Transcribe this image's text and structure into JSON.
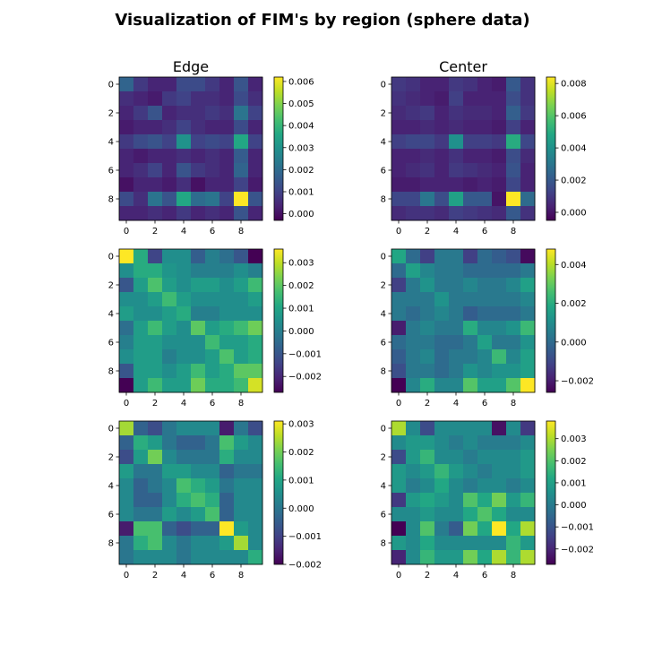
{
  "figure": {
    "suptitle": "Visualization of FIM's by region (sphere data)",
    "col_titles": [
      "Edge",
      "Center"
    ],
    "colormap": "viridis"
  },
  "chart_data": [
    {
      "type": "heatmap",
      "row": 0,
      "col": 0,
      "vmin": -0.0003,
      "vmax": 0.0062,
      "ticks": [
        0.0,
        0.001,
        0.002,
        0.003,
        0.004,
        0.005,
        0.006
      ],
      "tick_labels": [
        "0.000",
        "0.001",
        "0.002",
        "0.003",
        "0.004",
        "0.005",
        "0.006"
      ],
      "axis_ticks": [
        0,
        2,
        4,
        6,
        8
      ],
      "values": [
        [
          0.0018,
          0.0008,
          0.0004,
          0.0004,
          0.0012,
          0.0012,
          0.0008,
          0.0004,
          0.0014,
          0.0004
        ],
        [
          0.0006,
          0.0004,
          0.0002,
          0.0008,
          0.001,
          0.0006,
          0.0006,
          0.0004,
          0.0012,
          0.0006
        ],
        [
          0.0004,
          0.0008,
          0.0014,
          0.0004,
          0.0006,
          0.0006,
          0.0008,
          0.0006,
          0.0022,
          0.001
        ],
        [
          0.0002,
          0.0004,
          0.0004,
          0.0006,
          0.001,
          0.0006,
          0.0004,
          0.0004,
          0.0012,
          0.0004
        ],
        [
          0.0008,
          0.0012,
          0.0014,
          0.001,
          0.003,
          0.001,
          0.0012,
          0.001,
          0.0036,
          0.001
        ],
        [
          0.0004,
          0.0002,
          0.0004,
          0.0004,
          0.0006,
          0.0004,
          0.0006,
          0.0004,
          0.0016,
          0.0004
        ],
        [
          0.0004,
          0.0006,
          0.001,
          0.0004,
          0.0014,
          0.0008,
          0.0006,
          0.0004,
          0.0018,
          0.0004
        ],
        [
          0.0,
          0.0004,
          0.0004,
          0.0002,
          0.0006,
          0.0,
          0.0004,
          0.0004,
          0.001,
          0.0002
        ],
        [
          0.0012,
          0.0006,
          0.0022,
          0.0014,
          0.0036,
          0.002,
          0.0022,
          0.001,
          0.0062,
          0.0014
        ],
        [
          0.0004,
          0.0004,
          0.0006,
          0.0004,
          0.0008,
          0.0004,
          0.0006,
          0.0004,
          0.0014,
          0.0004
        ]
      ]
    },
    {
      "type": "heatmap",
      "row": 0,
      "col": 1,
      "vmin": -0.0005,
      "vmax": 0.0084,
      "ticks": [
        0.0,
        0.002,
        0.004,
        0.006,
        0.008
      ],
      "tick_labels": [
        "0.000",
        "0.002",
        "0.004",
        "0.006",
        "0.008"
      ],
      "axis_ticks": [
        0,
        2,
        4,
        6,
        8
      ],
      "values": [
        [
          0.001,
          0.0008,
          0.0004,
          0.0004,
          0.001,
          0.0008,
          0.0004,
          0.0002,
          0.002,
          0.0008
        ],
        [
          0.0008,
          0.0006,
          0.0004,
          0.0002,
          0.0012,
          0.0004,
          0.0004,
          0.0004,
          0.0016,
          0.0008
        ],
        [
          0.0006,
          0.0008,
          0.001,
          0.0004,
          0.0008,
          0.0006,
          0.0006,
          0.0004,
          0.0022,
          0.001
        ],
        [
          0.0004,
          0.0004,
          0.0006,
          0.0004,
          0.0006,
          0.0004,
          0.0004,
          0.0002,
          0.0012,
          0.0004
        ],
        [
          0.0012,
          0.0014,
          0.0014,
          0.001,
          0.004,
          0.0012,
          0.0012,
          0.001,
          0.005,
          0.0014
        ],
        [
          0.0004,
          0.0004,
          0.0006,
          0.0004,
          0.0008,
          0.0004,
          0.0004,
          0.0002,
          0.0016,
          0.0006
        ],
        [
          0.0004,
          0.0006,
          0.0008,
          0.0004,
          0.001,
          0.0008,
          0.0006,
          0.0004,
          0.0018,
          0.0004
        ],
        [
          0.0002,
          0.0002,
          0.0004,
          0.0004,
          0.0004,
          0.0002,
          0.0004,
          0.0002,
          0.0014,
          0.0004
        ],
        [
          0.0014,
          0.0014,
          0.003,
          0.0016,
          0.0046,
          0.002,
          0.002,
          0.0,
          0.0084,
          0.0026
        ],
        [
          0.0006,
          0.0008,
          0.0008,
          0.0006,
          0.0012,
          0.001,
          0.0008,
          0.0006,
          0.002,
          0.0008
        ]
      ]
    },
    {
      "type": "heatmap",
      "row": 1,
      "col": 0,
      "vmin": -0.0027,
      "vmax": 0.0036,
      "ticks": [
        -0.002,
        -0.001,
        0.0,
        0.001,
        0.002,
        0.003
      ],
      "tick_labels": [
        "−0.002",
        "−0.001",
        "0.000",
        "0.001",
        "0.002",
        "0.003"
      ],
      "axis_ticks": [
        0,
        2,
        4,
        6,
        8
      ],
      "values": [
        [
          0.0036,
          0.0012,
          -0.0014,
          0.0004,
          0.0004,
          -0.0008,
          0.0,
          -0.0004,
          -0.001,
          -0.0027
        ],
        [
          0.0004,
          0.0012,
          0.0012,
          0.0006,
          0.0004,
          0.0,
          0.0,
          0.0,
          0.0004,
          0.0
        ],
        [
          -0.001,
          0.0008,
          0.0018,
          0.0008,
          0.0004,
          0.0008,
          0.0008,
          0.0004,
          0.0008,
          0.0016
        ],
        [
          0.0004,
          0.0004,
          0.0008,
          0.0016,
          0.0008,
          0.0004,
          0.0004,
          0.0004,
          0.0004,
          0.0008
        ],
        [
          0.0008,
          0.0004,
          0.0004,
          0.0008,
          0.0012,
          0.0,
          0.0,
          0.0004,
          0.0004,
          0.0004
        ],
        [
          -0.0004,
          0.0008,
          0.0016,
          0.0008,
          0.0004,
          0.002,
          0.0008,
          0.0012,
          0.0016,
          0.0022
        ],
        [
          0.0,
          0.0008,
          0.0008,
          0.0004,
          0.0004,
          0.0004,
          0.0016,
          0.0008,
          0.0008,
          0.0012
        ],
        [
          0.0004,
          0.0008,
          0.0008,
          0.0,
          0.0004,
          0.0004,
          0.0008,
          0.0018,
          0.0008,
          0.0012
        ],
        [
          -0.001,
          0.0008,
          0.0008,
          0.0004,
          0.0008,
          0.0016,
          0.0008,
          0.0012,
          0.002,
          0.002
        ],
        [
          -0.0027,
          0.0008,
          0.0016,
          0.0008,
          0.0008,
          0.0022,
          0.0012,
          0.0012,
          0.0016,
          0.0032
        ]
      ]
    },
    {
      "type": "heatmap",
      "row": 1,
      "col": 1,
      "vmin": -0.0026,
      "vmax": 0.0048,
      "ticks": [
        -0.002,
        0.0,
        0.002,
        0.004
      ],
      "tick_labels": [
        "−0.002",
        "0.000",
        "0.002",
        "0.004"
      ],
      "axis_ticks": [
        0,
        2,
        4,
        6,
        8
      ],
      "values": [
        [
          0.0018,
          0.0,
          -0.0012,
          0.0004,
          0.0004,
          -0.0012,
          0.0,
          -0.0004,
          -0.0008,
          -0.0024
        ],
        [
          0.0,
          0.0016,
          0.0008,
          0.0004,
          0.0004,
          0.0,
          0.0,
          0.0,
          0.0,
          0.0004
        ],
        [
          -0.0012,
          0.0004,
          0.0012,
          0.0004,
          0.0004,
          0.0008,
          0.0004,
          0.0004,
          0.0008,
          0.0016
        ],
        [
          0.0004,
          0.0004,
          0.0004,
          0.0012,
          0.0004,
          0.0004,
          0.0004,
          0.0004,
          0.0004,
          0.0008
        ],
        [
          0.0004,
          0.0,
          0.0004,
          0.0008,
          0.0004,
          -0.0004,
          0.0,
          0.0,
          0.0,
          0.0004
        ],
        [
          -0.002,
          0.0004,
          0.0008,
          0.0004,
          0.0004,
          0.002,
          0.0008,
          0.0008,
          0.0012,
          0.0024
        ],
        [
          0.0,
          0.0004,
          0.0004,
          0.0,
          0.0,
          0.0004,
          0.0016,
          0.0004,
          0.0004,
          0.0012
        ],
        [
          -0.0004,
          0.0004,
          0.0008,
          0.0,
          0.0004,
          0.0004,
          0.0008,
          0.0024,
          0.0008,
          0.0016
        ],
        [
          -0.0008,
          0.0004,
          0.0004,
          0.0,
          0.0004,
          0.0012,
          0.0008,
          0.0012,
          0.0012,
          0.0016
        ],
        [
          -0.0026,
          0.0008,
          0.002,
          0.0008,
          0.0008,
          0.0028,
          0.0016,
          0.0016,
          0.0028,
          0.0048
        ]
      ]
    },
    {
      "type": "heatmap",
      "row": 2,
      "col": 0,
      "vmin": -0.002,
      "vmax": 0.0031,
      "ticks": [
        -0.002,
        -0.001,
        0.0,
        0.001,
        0.002,
        0.003
      ],
      "tick_labels": [
        "−0.002",
        "−0.001",
        "0.000",
        "0.001",
        "0.002",
        "0.003"
      ],
      "axis_ticks": [
        0,
        2,
        4,
        6,
        8
      ],
      "values": [
        [
          0.0024,
          -0.0004,
          -0.0008,
          0.0,
          0.0004,
          0.0004,
          0.0004,
          -0.0016,
          0.0,
          -0.0008
        ],
        [
          -0.0004,
          0.0012,
          0.0008,
          0.0,
          -0.0004,
          -0.0004,
          0.0,
          0.0016,
          0.0008,
          0.0004
        ],
        [
          -0.0008,
          0.0008,
          0.002,
          0.0004,
          0.0,
          0.0,
          0.0,
          0.0012,
          0.0004,
          0.0004
        ],
        [
          0.0008,
          0.0,
          0.0,
          0.0008,
          0.0008,
          0.0004,
          0.0004,
          -0.0004,
          0.0,
          0.0
        ],
        [
          0.0004,
          -0.0004,
          0.0,
          0.0004,
          0.0016,
          0.0012,
          0.0008,
          0.0,
          0.0004,
          0.0004
        ],
        [
          0.0004,
          -0.0004,
          -0.0004,
          0.0004,
          0.0012,
          0.0016,
          0.0012,
          -0.0004,
          0.0004,
          0.0004
        ],
        [
          0.0004,
          0.0,
          0.0,
          0.0008,
          0.0004,
          0.0008,
          0.0016,
          -0.0004,
          0.0004,
          0.0004
        ],
        [
          -0.0016,
          0.0016,
          0.0016,
          -0.0004,
          -0.0008,
          -0.0004,
          -0.0004,
          0.0031,
          0.0008,
          0.0004
        ],
        [
          0.0,
          0.0012,
          0.0016,
          0.0004,
          0.0,
          0.0004,
          0.0004,
          0.0008,
          0.0024,
          0.0004
        ],
        [
          0.0,
          0.0004,
          0.0004,
          0.0004,
          0.0,
          0.0004,
          0.0004,
          0.0004,
          0.0004,
          0.0012
        ]
      ]
    },
    {
      "type": "heatmap",
      "row": 2,
      "col": 1,
      "vmin": -0.0027,
      "vmax": 0.0038,
      "ticks": [
        -0.002,
        -0.001,
        0.0,
        0.001,
        0.002,
        0.003
      ],
      "tick_labels": [
        "−0.002",
        "−0.001",
        "0.000",
        "0.001",
        "0.002",
        "0.003"
      ],
      "axis_ticks": [
        0,
        2,
        4,
        6,
        8
      ],
      "values": [
        [
          0.003,
          0.0004,
          -0.0012,
          0.0004,
          0.0004,
          0.0004,
          0.0004,
          -0.0024,
          0.0004,
          -0.0016
        ],
        [
          0.0004,
          0.0008,
          0.0008,
          0.0004,
          0.0,
          0.0004,
          0.0,
          0.0,
          0.0,
          0.0004
        ],
        [
          -0.0012,
          0.0008,
          0.0016,
          0.0004,
          0.0004,
          0.0,
          0.0004,
          0.0004,
          0.0004,
          0.0008
        ],
        [
          0.0008,
          0.0004,
          0.0008,
          0.0016,
          0.0008,
          0.0004,
          0.0,
          0.0004,
          0.0004,
          0.0008
        ],
        [
          0.0008,
          0.0,
          0.0004,
          0.0012,
          0.0004,
          0.0,
          0.0004,
          0.0004,
          0.0,
          0.0004
        ],
        [
          -0.0016,
          0.0008,
          0.0012,
          0.0008,
          0.0004,
          0.002,
          0.0012,
          0.0024,
          0.0008,
          0.0016
        ],
        [
          0.0004,
          0.0004,
          0.0008,
          0.0004,
          0.0004,
          0.0012,
          0.002,
          0.0012,
          0.0004,
          0.0004
        ],
        [
          -0.0027,
          0.0004,
          0.002,
          0.0,
          -0.0008,
          0.0024,
          0.0012,
          0.0038,
          0.0012,
          0.003
        ],
        [
          0.0008,
          0.0004,
          0.0012,
          0.0004,
          0.0004,
          0.0004,
          0.0004,
          0.0004,
          0.0016,
          0.0008
        ],
        [
          -0.002,
          0.0004,
          0.0016,
          0.0008,
          0.0008,
          0.0024,
          0.0012,
          0.003,
          0.0016,
          0.003
        ]
      ]
    }
  ]
}
